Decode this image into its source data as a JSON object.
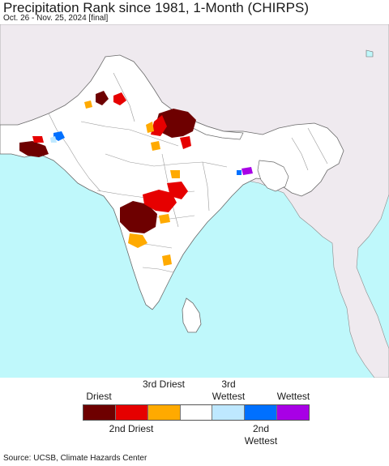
{
  "header": {
    "title": "Precipitation Rank since 1981, 1-Month (CHIRPS)",
    "subtitle": "Oct. 26 - Nov. 25, 2024 [final]"
  },
  "map": {
    "region": "South Asia",
    "colors": {
      "ocean": "#bff8fb",
      "land_outside": "#efeaef",
      "land_in_region": "#ffffff",
      "borders": "#7a7a7a"
    }
  },
  "legend": {
    "categories": [
      {
        "color": "#6e0000",
        "top_label": "Driest",
        "bottom_label": ""
      },
      {
        "color": "#e60000",
        "top_label": "",
        "bottom_label": "2nd Driest"
      },
      {
        "color": "#ffaa00",
        "top_label": "3rd Driest",
        "bottom_label": ""
      },
      {
        "color": "#ffffff",
        "top_label": "",
        "bottom_label": ""
      },
      {
        "color": "#bee8ff",
        "top_label": "3rd Wettest",
        "bottom_label": ""
      },
      {
        "color": "#0070ff",
        "top_label": "",
        "bottom_label": "2nd Wettest"
      },
      {
        "color": "#a800e6",
        "top_label": "Wettest",
        "bottom_label": ""
      }
    ]
  },
  "footer": {
    "source": "Source: UCSB, Climate Hazards Center"
  }
}
